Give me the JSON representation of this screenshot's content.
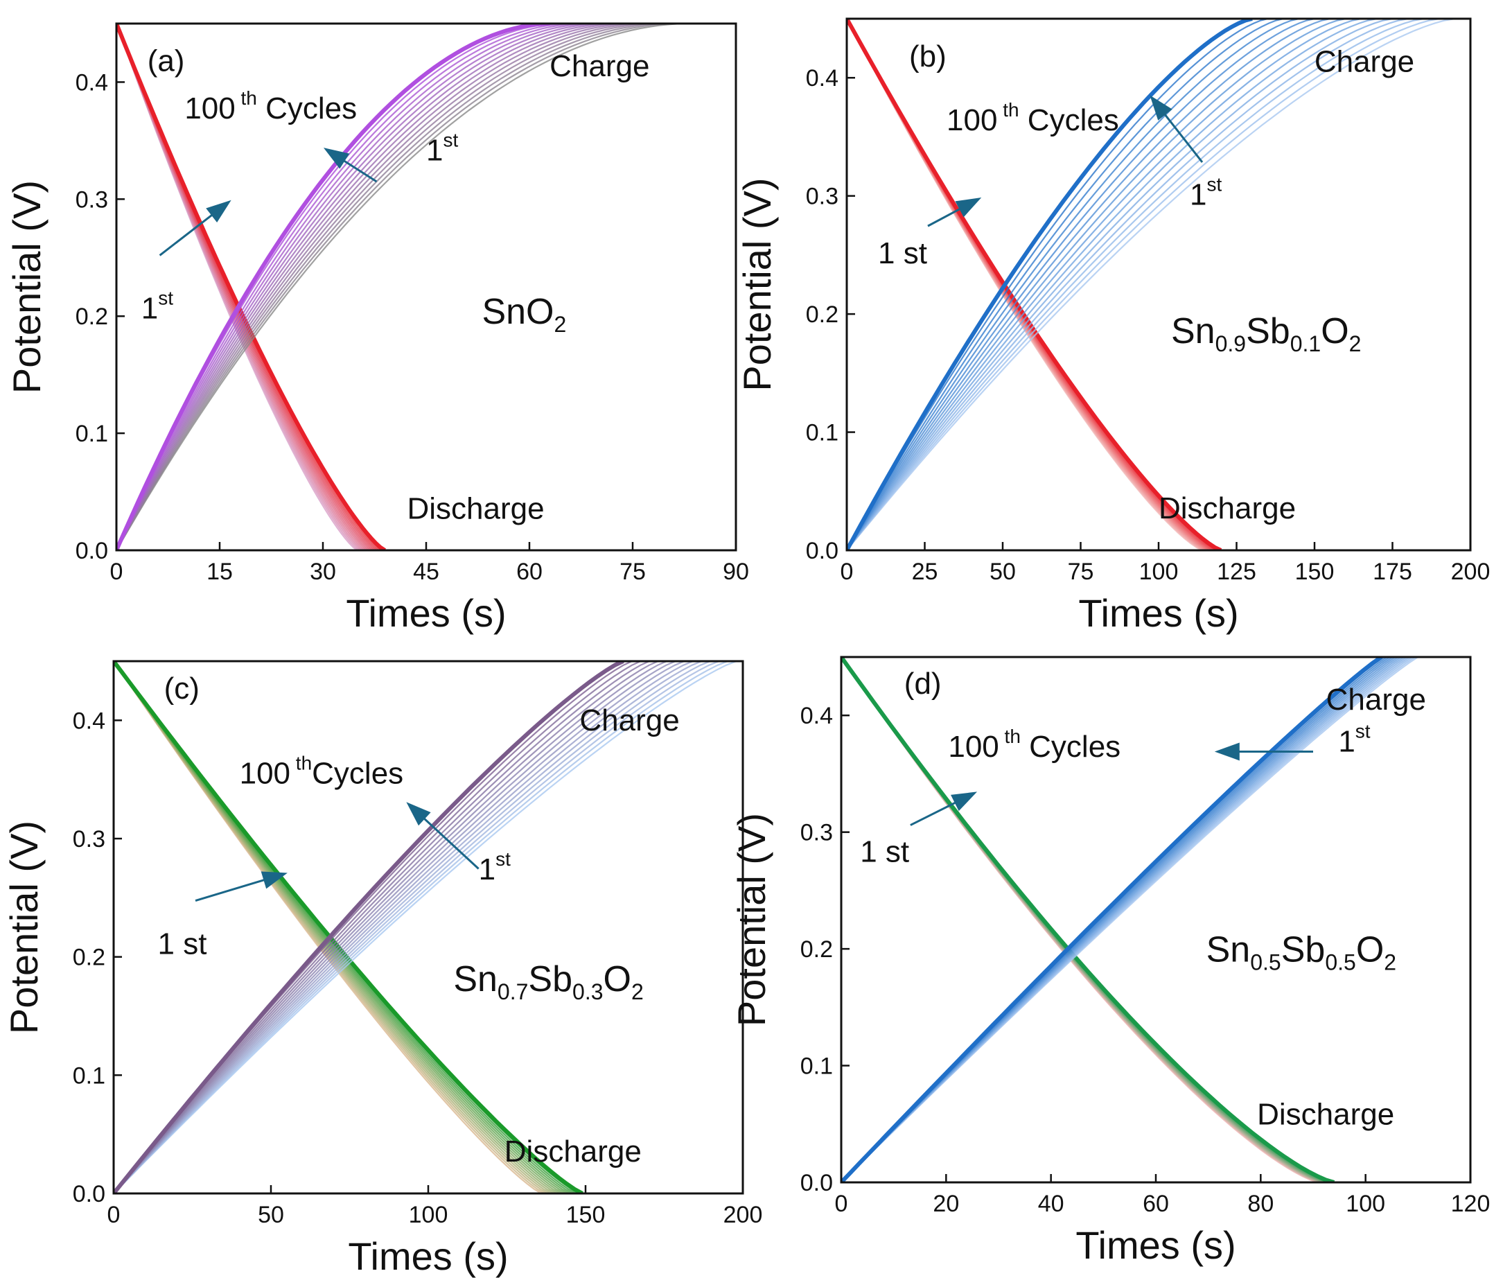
{
  "chart_data": [
    {
      "type": "line",
      "panel": "(a)",
      "material": {
        "base": "SnO",
        "sub": "2",
        "parts": [
          [
            "SnO",
            ""
          ],
          [
            "2",
            "sub"
          ]
        ]
      },
      "xlabel": "Times (s)",
      "ylabel": "Potential (V)",
      "xlim": [
        0,
        90
      ],
      "ylim": [
        0,
        0.45
      ],
      "xticks": [
        0,
        15,
        30,
        45,
        60,
        75,
        90
      ],
      "xtick_labels": [
        "0",
        "15",
        "30",
        "45",
        "60",
        "75",
        "90"
      ],
      "yticks": [
        0.0,
        0.1,
        0.2,
        0.3,
        0.4
      ],
      "ytick_labels": [
        "0.0",
        "0.1",
        "0.2",
        "0.3",
        "0.4"
      ],
      "labels": {
        "charge": "Charge",
        "discharge": "Discharge",
        "cycles_main": "100",
        "cycles_sup": "th",
        "cycles_tail": " Cycles",
        "first_charge": "1",
        "first_charge_sup": "st",
        "first_discharge": "1",
        "first_discharge_sup": "st"
      },
      "charge": {
        "start": 0.0,
        "end_first": 83,
        "end_last": 63,
        "curvature": 0.55,
        "color_first": "#8a8a8a",
        "color_last": "#b04fe0"
      },
      "discharge": {
        "start": 0.45,
        "end_first": 35,
        "end_last": 39,
        "curvature": 0.3,
        "color_first": "#d9a0c8",
        "color_last": "#e8202a"
      },
      "crossing": {
        "x": 17,
        "y": 0.19
      }
    },
    {
      "type": "line",
      "panel": "(b)",
      "material": {
        "parts": [
          [
            "Sn",
            ""
          ],
          [
            "0.9",
            "sub"
          ],
          [
            "Sb",
            ""
          ],
          [
            "0.1",
            "sub"
          ],
          [
            "O",
            ""
          ],
          [
            "2",
            "sub"
          ]
        ]
      },
      "xlabel": "Times (s)",
      "ylabel": "Potential (V)",
      "xlim": [
        0,
        200
      ],
      "ylim": [
        0,
        0.45
      ],
      "xticks": [
        0,
        25,
        50,
        75,
        100,
        125,
        150,
        175,
        200
      ],
      "xtick_labels": [
        "0",
        "25",
        "50",
        "75",
        "100",
        "125",
        "150",
        "175",
        "200"
      ],
      "yticks": [
        0.0,
        0.1,
        0.2,
        0.3,
        0.4
      ],
      "ytick_labels": [
        "0.0",
        "0.1",
        "0.2",
        "0.3",
        "0.4"
      ],
      "labels": {
        "charge": "Charge",
        "discharge": "Discharge",
        "cycles_main": "100",
        "cycles_sup": "th",
        "cycles_tail": " Cycles",
        "first_charge": "1",
        "first_charge_sup": "st",
        "first_discharge": "1 st"
      },
      "charge": {
        "start": 0.0,
        "end_first": 195,
        "end_last": 130,
        "curvature": 0.25,
        "color_first": "#a9c8f0",
        "color_last": "#1f6fc8"
      },
      "discharge": {
        "start": 0.45,
        "end_first": 114,
        "end_last": 120,
        "curvature": 0.3,
        "color_first": "#f2b8b8",
        "color_last": "#e8202a"
      },
      "crossing": {
        "x": 55,
        "y": 0.2
      }
    },
    {
      "type": "line",
      "panel": "(c)",
      "material": {
        "parts": [
          [
            "Sn",
            ""
          ],
          [
            "0.7",
            "sub"
          ],
          [
            "Sb",
            ""
          ],
          [
            "0.3",
            "sub"
          ],
          [
            "O",
            ""
          ],
          [
            "2",
            "sub"
          ]
        ]
      },
      "xlabel": "Times (s)",
      "ylabel": "Potential (V)",
      "xlim": [
        0,
        200
      ],
      "ylim": [
        0,
        0.45
      ],
      "xticks": [
        0,
        50,
        100,
        150,
        200
      ],
      "xtick_labels": [
        "0",
        "50",
        "100",
        "150",
        "200"
      ],
      "yticks": [
        0.0,
        0.1,
        0.2,
        0.3,
        0.4
      ],
      "ytick_labels": [
        "0.0",
        "0.1",
        "0.2",
        "0.3",
        "0.4"
      ],
      "labels": {
        "charge": "Charge",
        "discharge": "Discharge",
        "cycles_main": "100",
        "cycles_sup": "th",
        "cycles_tail": "Cycles",
        "first_charge": "1",
        "first_charge_sup": "st",
        "first_discharge": "1 st"
      },
      "charge": {
        "start": 0.0,
        "end_first": 198,
        "end_last": 162,
        "curvature": 0.12,
        "color_first": "#a9c8f0",
        "color_last": "#7a5a8a"
      },
      "discharge": {
        "start": 0.45,
        "end_first": 136,
        "end_last": 149,
        "curvature": 0.2,
        "color_first": "#d9b890",
        "color_last": "#1a9a2a"
      },
      "crossing": {
        "x": 68,
        "y": 0.2
      }
    },
    {
      "type": "line",
      "panel": "(d)",
      "material": {
        "parts": [
          [
            "Sn",
            ""
          ],
          [
            "0.5",
            "sub"
          ],
          [
            "Sb",
            ""
          ],
          [
            "0.5",
            "sub"
          ],
          [
            "O",
            ""
          ],
          [
            "2",
            "sub"
          ]
        ]
      },
      "xlabel": "Times (s)",
      "ylabel": "Potential (V)",
      "xlim": [
        0,
        120
      ],
      "ylim": [
        0,
        0.45
      ],
      "xticks": [
        0,
        20,
        40,
        60,
        80,
        100,
        120
      ],
      "xtick_labels": [
        "0",
        "20",
        "40",
        "60",
        "80",
        "100",
        "120"
      ],
      "yticks": [
        0.0,
        0.1,
        0.2,
        0.3,
        0.4
      ],
      "ytick_labels": [
        "0.0",
        "0.1",
        "0.2",
        "0.3",
        "0.4"
      ],
      "labels": {
        "charge": "Charge",
        "discharge": "Discharge",
        "cycles_main": "100",
        "cycles_sup": "th",
        "cycles_tail": " Cycles",
        "first_charge": "1",
        "first_charge_sup": "st",
        "first_discharge": "1 st"
      },
      "charge": {
        "start": 0.0,
        "end_first": 110,
        "end_last": 103,
        "curvature": 0.05,
        "color_first": "#a9c8f0",
        "color_last": "#1f6fc8"
      },
      "discharge": {
        "start": 0.45,
        "end_first": 91,
        "end_last": 94,
        "curvature": 0.35,
        "color_first": "#f2b8b8",
        "color_last": "#1a9a4a"
      },
      "crossing": {
        "x": 40,
        "y": 0.2
      }
    }
  ]
}
